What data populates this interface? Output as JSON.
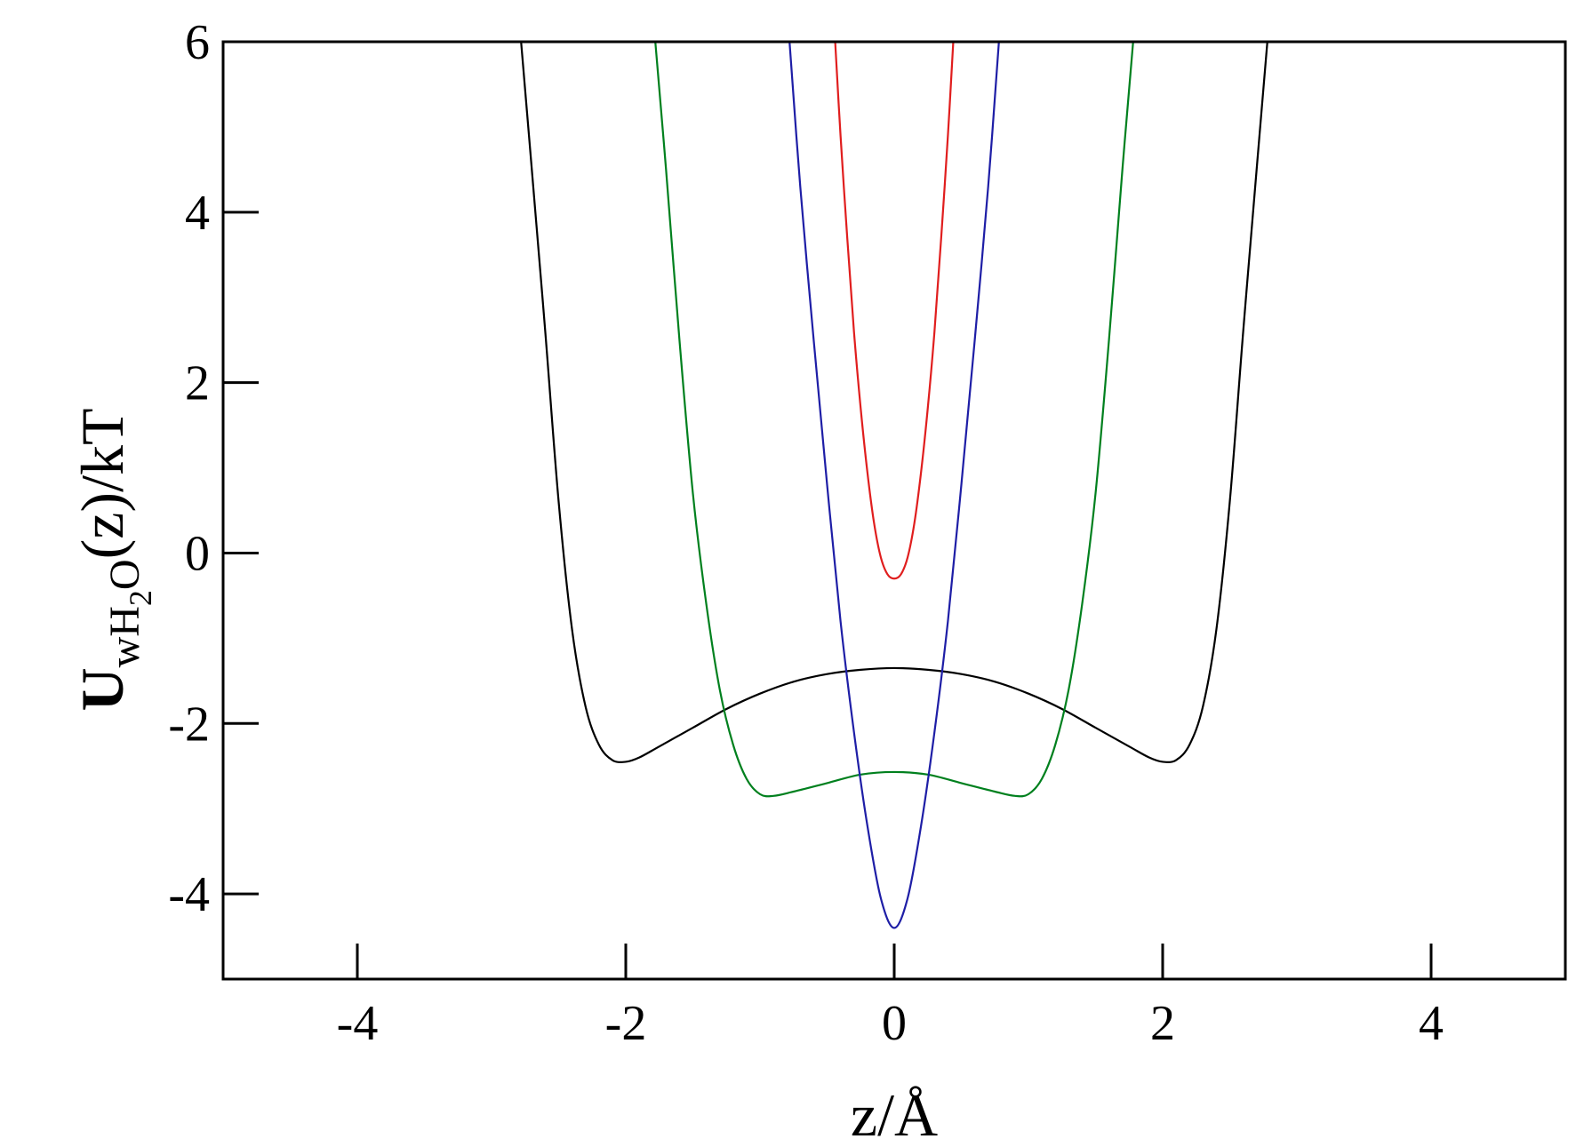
{
  "chart_data": {
    "type": "line",
    "title": "",
    "xlabel": "z/Å",
    "ylabel": {
      "main": "U",
      "sub1": "wH",
      "sub2": "2",
      "sub3": "O",
      "rest": "(z)/kT"
    },
    "xlim": [
      -5,
      5
    ],
    "ylim": [
      -5,
      6
    ],
    "x_ticks": [
      -4,
      -2,
      0,
      2,
      4
    ],
    "x_tick_labels": [
      "-4",
      "-2",
      "0",
      "2",
      "4"
    ],
    "y_ticks": [
      -4,
      -2,
      0,
      2,
      4,
      6
    ],
    "y_tick_labels": [
      "-4",
      "-2",
      "0",
      "2",
      "4",
      "6"
    ],
    "grid": false,
    "series": [
      {
        "color": "#000000",
        "points": [
          [
            -2.78,
            6.0
          ],
          [
            -2.7,
            4.5
          ],
          [
            -2.6,
            2.6
          ],
          [
            -2.5,
            0.6
          ],
          [
            -2.4,
            -0.9
          ],
          [
            -2.3,
            -1.8
          ],
          [
            -2.2,
            -2.25
          ],
          [
            -2.1,
            -2.43
          ],
          [
            -2.0,
            -2.45
          ],
          [
            -1.9,
            -2.4
          ],
          [
            -1.75,
            -2.27
          ],
          [
            -1.5,
            -2.05
          ],
          [
            -1.25,
            -1.83
          ],
          [
            -1.0,
            -1.65
          ],
          [
            -0.75,
            -1.51
          ],
          [
            -0.5,
            -1.42
          ],
          [
            -0.25,
            -1.37
          ],
          [
            0.0,
            -1.35
          ],
          [
            0.25,
            -1.37
          ],
          [
            0.5,
            -1.42
          ],
          [
            0.75,
            -1.51
          ],
          [
            1.0,
            -1.65
          ],
          [
            1.25,
            -1.83
          ],
          [
            1.5,
            -2.05
          ],
          [
            1.75,
            -2.27
          ],
          [
            1.9,
            -2.4
          ],
          [
            2.0,
            -2.45
          ],
          [
            2.1,
            -2.43
          ],
          [
            2.2,
            -2.25
          ],
          [
            2.3,
            -1.8
          ],
          [
            2.4,
            -0.9
          ],
          [
            2.5,
            0.6
          ],
          [
            2.6,
            2.6
          ],
          [
            2.7,
            4.5
          ],
          [
            2.78,
            6.0
          ]
        ]
      },
      {
        "color": "#00801e",
        "points": [
          [
            -1.78,
            6.0
          ],
          [
            -1.7,
            4.5
          ],
          [
            -1.6,
            2.5
          ],
          [
            -1.5,
            0.7
          ],
          [
            -1.4,
            -0.6
          ],
          [
            -1.3,
            -1.6
          ],
          [
            -1.2,
            -2.25
          ],
          [
            -1.1,
            -2.65
          ],
          [
            -1.0,
            -2.83
          ],
          [
            -0.9,
            -2.85
          ],
          [
            -0.75,
            -2.8
          ],
          [
            -0.5,
            -2.7
          ],
          [
            -0.25,
            -2.6
          ],
          [
            0.0,
            -2.57
          ],
          [
            0.25,
            -2.6
          ],
          [
            0.5,
            -2.7
          ],
          [
            0.75,
            -2.8
          ],
          [
            0.9,
            -2.85
          ],
          [
            1.0,
            -2.83
          ],
          [
            1.1,
            -2.65
          ],
          [
            1.2,
            -2.25
          ],
          [
            1.3,
            -1.6
          ],
          [
            1.4,
            -0.6
          ],
          [
            1.5,
            0.7
          ],
          [
            1.6,
            2.5
          ],
          [
            1.7,
            4.5
          ],
          [
            1.78,
            6.0
          ]
        ]
      },
      {
        "color": "#1e1ea6",
        "points": [
          [
            -0.78,
            6.0
          ],
          [
            -0.7,
            4.3
          ],
          [
            -0.6,
            2.5
          ],
          [
            -0.5,
            0.8
          ],
          [
            -0.4,
            -0.8
          ],
          [
            -0.3,
            -2.1
          ],
          [
            -0.2,
            -3.2
          ],
          [
            -0.1,
            -4.05
          ],
          [
            0.0,
            -4.4
          ],
          [
            0.1,
            -4.05
          ],
          [
            0.2,
            -3.2
          ],
          [
            0.3,
            -2.1
          ],
          [
            0.4,
            -0.8
          ],
          [
            0.5,
            0.8
          ],
          [
            0.6,
            2.5
          ],
          [
            0.7,
            4.3
          ],
          [
            0.78,
            6.0
          ]
        ]
      },
      {
        "color": "#e01e1e",
        "points": [
          [
            -0.44,
            6.0
          ],
          [
            -0.4,
            4.9
          ],
          [
            -0.35,
            3.7
          ],
          [
            -0.3,
            2.6
          ],
          [
            -0.25,
            1.7
          ],
          [
            -0.2,
            0.95
          ],
          [
            -0.15,
            0.35
          ],
          [
            -0.1,
            -0.05
          ],
          [
            -0.05,
            -0.25
          ],
          [
            0.0,
            -0.3
          ],
          [
            0.05,
            -0.25
          ],
          [
            0.1,
            -0.05
          ],
          [
            0.15,
            0.35
          ],
          [
            0.2,
            0.95
          ],
          [
            0.25,
            1.7
          ],
          [
            0.3,
            2.6
          ],
          [
            0.35,
            3.7
          ],
          [
            0.4,
            4.9
          ],
          [
            0.44,
            6.0
          ]
        ]
      }
    ]
  }
}
